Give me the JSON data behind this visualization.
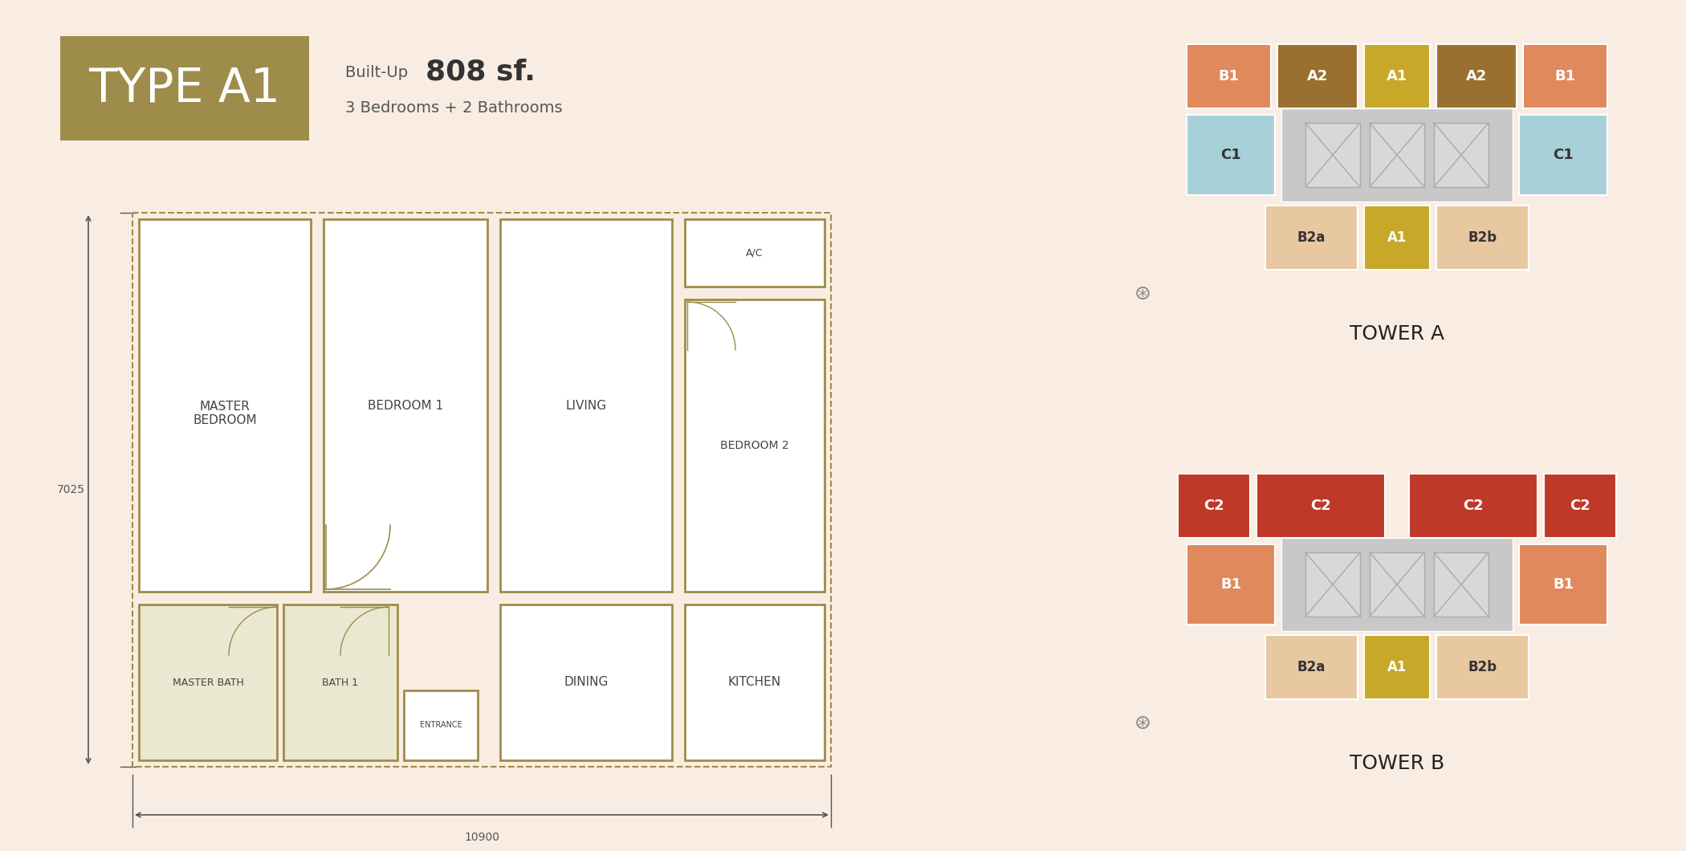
{
  "background_color": "#f9ede3",
  "title_box_color": "#9e8c4a",
  "title_text": "TYPE A1",
  "title_text_color": "#ffffff",
  "built_up_label": "Built-Up ",
  "built_up_value": "808 sf.",
  "built_up_sub": "3 Bedrooms + 2 Bathrooms",
  "wall_color": "#9e8c4a",
  "room_fill": "#ffffff",
  "bath_fill": "#eae8d0",
  "dim_color": "#555555",
  "measurement_7025": "7025",
  "measurement_10900": "10900",
  "tower_a_title": "TOWER A",
  "tower_b_title": "TOWER B",
  "ta_top": [
    {
      "label": "B1",
      "color": "#e0895c",
      "tc": "#ffffff"
    },
    {
      "label": "A2",
      "color": "#9a7030",
      "tc": "#ffffff"
    },
    {
      "label": "A1",
      "color": "#c8a828",
      "tc": "#ffffff"
    },
    {
      "label": "A2",
      "color": "#9a7030",
      "tc": "#ffffff"
    },
    {
      "label": "B1",
      "color": "#e0895c",
      "tc": "#ffffff"
    }
  ],
  "ta_mid_c1_color": "#a8d0d8",
  "ta_mid_c1_tc": "#333333",
  "ta_bot": [
    {
      "label": "B2a",
      "color": "#e8c8a0",
      "tc": "#333333"
    },
    {
      "label": "A1",
      "color": "#c8a828",
      "tc": "#ffffff"
    },
    {
      "label": "B2b",
      "color": "#e8c8a0",
      "tc": "#333333"
    }
  ],
  "tb_top": [
    {
      "label": "C2",
      "color": "#c03828",
      "tc": "#ffffff"
    },
    {
      "label": "C2",
      "color": "#c03828",
      "tc": "#ffffff"
    },
    {
      "label": "C2",
      "color": "#c03828",
      "tc": "#ffffff"
    },
    {
      "label": "C2",
      "color": "#c03828",
      "tc": "#ffffff"
    }
  ],
  "tb_mid_b1_color": "#e0895c",
  "tb_mid_b1_tc": "#ffffff",
  "tb_bot": [
    {
      "label": "B2a",
      "color": "#e8c8a0",
      "tc": "#333333"
    },
    {
      "label": "A1",
      "color": "#c8a828",
      "tc": "#ffffff"
    },
    {
      "label": "B2b",
      "color": "#e8c8a0",
      "tc": "#333333"
    }
  ],
  "lift_fill": "#c8c8c8",
  "lift_box_fill": "#d8d8d8",
  "lift_box_edge": "#aaaaaa"
}
